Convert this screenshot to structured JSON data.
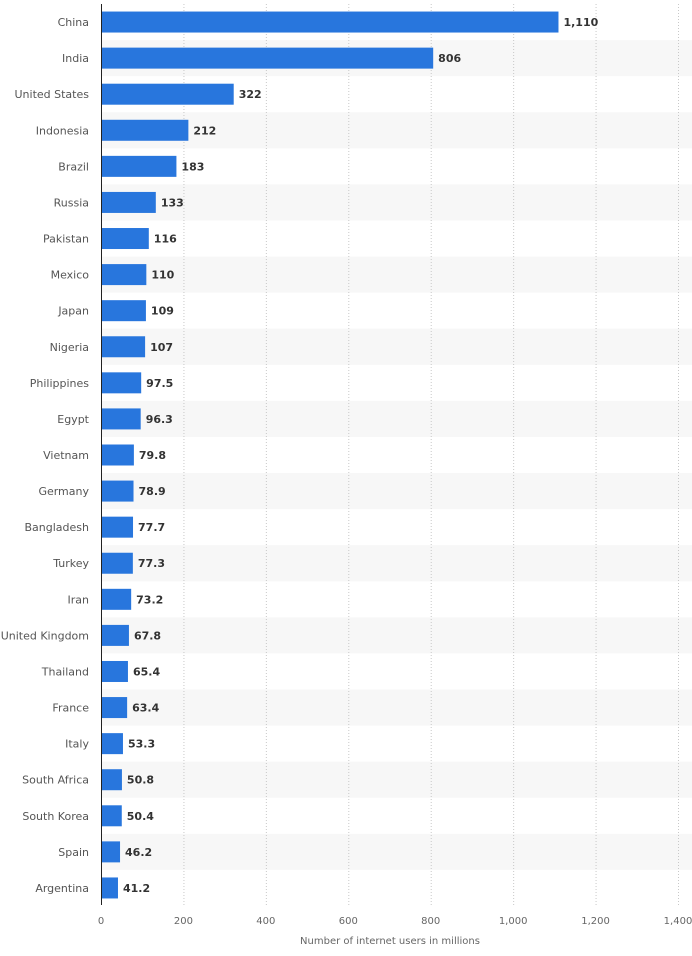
{
  "chart_data": {
    "type": "bar",
    "orientation": "horizontal",
    "title": "",
    "xlabel": "Number of internet users in millions",
    "ylabel": "",
    "xlim": [
      0,
      1400
    ],
    "xticks": [
      0,
      200,
      400,
      600,
      800,
      1000,
      1200,
      1400
    ],
    "xtick_labels": [
      "0",
      "200",
      "400",
      "600",
      "800",
      "1,000",
      "1,200",
      "1,400"
    ],
    "grid": true,
    "bar_color": "#2876dd",
    "categories": [
      "China",
      "India",
      "United States",
      "Indonesia",
      "Brazil",
      "Russia",
      "Pakistan",
      "Mexico",
      "Japan",
      "Nigeria",
      "Philippines",
      "Egypt",
      "Vietnam",
      "Germany",
      "Bangladesh",
      "Turkey",
      "Iran",
      "United Kingdom",
      "Thailand",
      "France",
      "Italy",
      "South Africa",
      "South Korea",
      "Spain",
      "Argentina"
    ],
    "values": [
      1110,
      806,
      322,
      212,
      183,
      133,
      116,
      110,
      109,
      107,
      97.5,
      96.3,
      79.8,
      78.9,
      77.7,
      77.3,
      73.2,
      67.8,
      65.4,
      63.4,
      53.3,
      50.8,
      50.4,
      46.2,
      41.2
    ],
    "value_labels": [
      "1,110",
      "806",
      "322",
      "212",
      "183",
      "133",
      "116",
      "110",
      "109",
      "107",
      "97.5",
      "96.3",
      "79.8",
      "78.9",
      "77.7",
      "77.3",
      "73.2",
      "67.8",
      "65.4",
      "63.4",
      "53.3",
      "50.8",
      "50.4",
      "46.2",
      "41.2"
    ]
  }
}
